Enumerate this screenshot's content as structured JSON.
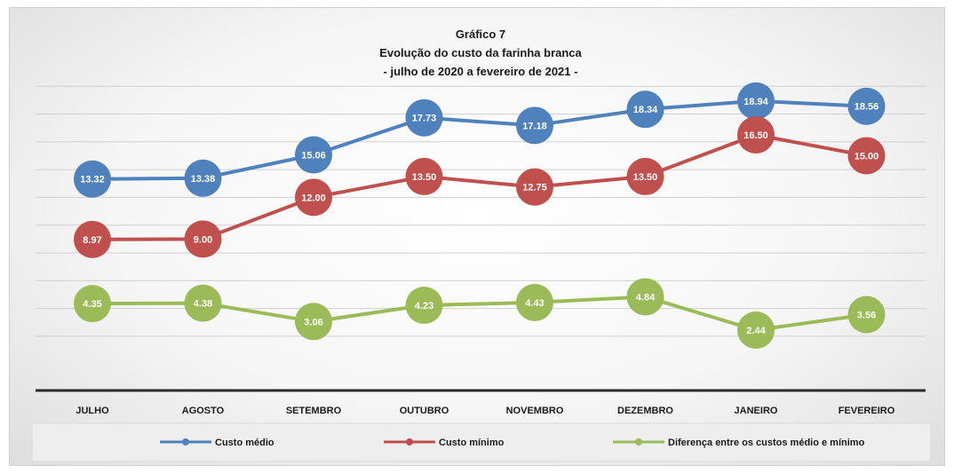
{
  "chart_data": {
    "type": "line",
    "title": "Gráfico 7",
    "subtitle": [
      "Evolução do custo da farinha branca",
      "- julho de 2020 a fevereiro de 2021 -"
    ],
    "categories": [
      "JULHO",
      "AGOSTO",
      "SETEMBRO",
      "OUTUBRO",
      "NOVEMBRO",
      "DEZEMBRO",
      "JANEIRO",
      "FEVEREIRO"
    ],
    "series": [
      {
        "name": "Custo médio",
        "color": "#4f81bd",
        "values": [
          13.32,
          13.38,
          15.06,
          17.73,
          17.18,
          18.34,
          18.94,
          18.56
        ],
        "labels": [
          "13.32",
          "13.38",
          "15.06",
          "17.73",
          "17.18",
          "18.34",
          "18.94",
          "18.56"
        ]
      },
      {
        "name": "Custo mínimo",
        "color": "#c0504d",
        "values": [
          8.97,
          9.0,
          12.0,
          13.5,
          12.75,
          13.5,
          16.5,
          15.0
        ],
        "labels": [
          "8.97",
          "9.00",
          "12.00",
          "13.50",
          "12.75",
          "13.50",
          "16.50",
          "15.00"
        ]
      },
      {
        "name": "Diferença entre os custos médio e mínimo",
        "color": "#9bbb59",
        "values": [
          4.35,
          4.38,
          3.06,
          4.23,
          4.43,
          4.84,
          2.44,
          3.56
        ],
        "labels": [
          "4.35",
          "4.38",
          "3.06",
          "4.23",
          "4.43",
          "4.84",
          "2.44",
          "3.56"
        ]
      }
    ],
    "ylim": [
      0,
      20
    ],
    "grid": true,
    "legend_position": "bottom"
  }
}
